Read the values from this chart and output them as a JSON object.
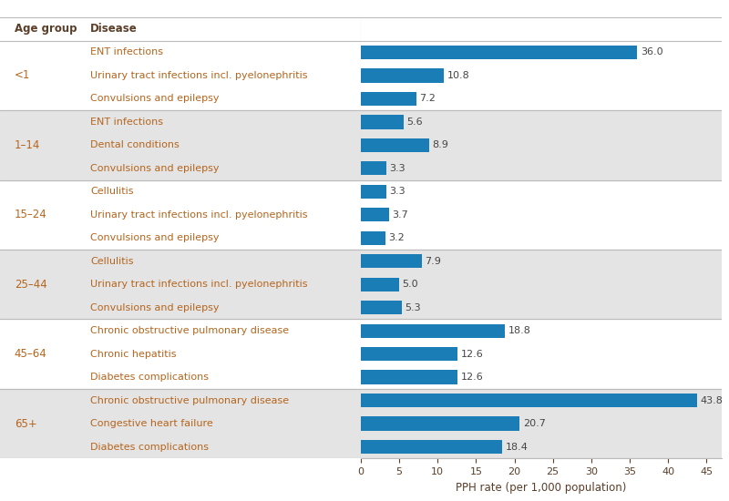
{
  "groups": [
    {
      "age": "<1",
      "bg": "#ffffff",
      "diseases": [
        {
          "label": "ENT infections",
          "value": 36.0
        },
        {
          "label": "Urinary tract infections incl. pyelonephritis",
          "value": 10.8
        },
        {
          "label": "Convulsions and epilepsy",
          "value": 7.2
        }
      ]
    },
    {
      "age": "1–14",
      "bg": "#e8e8e8",
      "diseases": [
        {
          "label": "ENT infections",
          "value": 5.6
        },
        {
          "label": "Dental conditions",
          "value": 8.9
        },
        {
          "label": "Convulsions and epilepsy",
          "value": 3.3
        }
      ]
    },
    {
      "age": "15–24",
      "bg": "#ffffff",
      "diseases": [
        {
          "label": "Cellulitis",
          "value": 3.3
        },
        {
          "label": "Urinary tract infections incl. pyelonephritis",
          "value": 3.7
        },
        {
          "label": "Convulsions and epilepsy",
          "value": 3.2
        }
      ]
    },
    {
      "age": "25–44",
      "bg": "#e8e8e8",
      "diseases": [
        {
          "label": "Cellulitis",
          "value": 7.9
        },
        {
          "label": "Urinary tract infections incl. pyelonephritis",
          "value": 5.0
        },
        {
          "label": "Convulsions and epilepsy",
          "value": 5.3
        }
      ]
    },
    {
      "age": "45–64",
      "bg": "#ffffff",
      "diseases": [
        {
          "label": "Chronic obstructive pulmonary disease",
          "value": 18.8
        },
        {
          "label": "Chronic hepatitis",
          "value": 12.6
        },
        {
          "label": "Diabetes complications",
          "value": 12.6
        }
      ]
    },
    {
      "age": "65+",
      "bg": "#e8e8e8",
      "diseases": [
        {
          "label": "Chronic obstructive pulmonary disease",
          "value": 43.8
        },
        {
          "label": "Congestive heart failure",
          "value": 20.7
        },
        {
          "label": "Diabetes complications",
          "value": 18.4
        }
      ]
    }
  ],
  "bar_color": "#1a7db5",
  "header_age": "Age group",
  "header_disease": "Disease",
  "xlabel": "PPH rate (per 1,000 population)",
  "xlim": [
    0,
    47
  ],
  "xticks": [
    0,
    5,
    10,
    15,
    20,
    25,
    30,
    35,
    40,
    45
  ],
  "text_color": "#b5651d",
  "header_color": "#5a3e28",
  "value_label_color": "#444444",
  "bar_height": 0.6,
  "figsize": [
    8.0,
    5.5
  ],
  "dpi": 100,
  "sep_color": "#bbbbbb",
  "bg_gray": "#e4e4e4"
}
